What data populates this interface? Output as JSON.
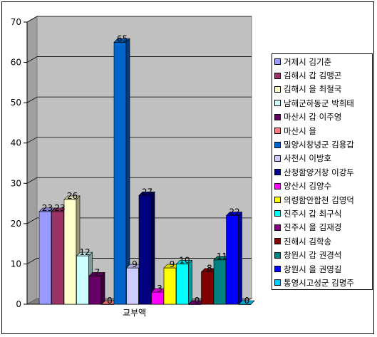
{
  "chart_data": {
    "type": "bar",
    "categories": [
      "교부액"
    ],
    "ylim": [
      0,
      70
    ],
    "yticks": [
      0,
      10,
      20,
      30,
      40,
      50,
      60,
      70
    ],
    "grid": true,
    "legend_position": "right",
    "series": [
      {
        "name": "거제시 김기춘",
        "value": 23,
        "color": "#9999ff"
      },
      {
        "name": "김해시 갑 김맹곤",
        "value": 23,
        "color": "#993366"
      },
      {
        "name": "김해시 을 최철국",
        "value": 26,
        "color": "#ffffcc"
      },
      {
        "name": "남해군하동군 박희태",
        "value": 12,
        "color": "#ccffff"
      },
      {
        "name": "마산시 갑 이주영",
        "value": 7,
        "color": "#660066"
      },
      {
        "name": "마산시 을",
        "value": 0,
        "color": "#ff8080"
      },
      {
        "name": "밀양시창녕군 김용갑",
        "value": 65,
        "color": "#0066cc"
      },
      {
        "name": "사천시 이방호",
        "value": 9,
        "color": "#ccccff"
      },
      {
        "name": "산청함양거창 이강두",
        "value": 27,
        "color": "#000080"
      },
      {
        "name": "양산시 김양수",
        "value": 3,
        "color": "#ff00ff"
      },
      {
        "name": "의령함안합천 김영덕",
        "value": 9,
        "color": "#ffff00"
      },
      {
        "name": "진주시 갑 최구식",
        "value": 10,
        "color": "#00ffff"
      },
      {
        "name": "진주시 을 김재경",
        "value": 0,
        "color": "#800080"
      },
      {
        "name": "진해시 김학송",
        "value": 8,
        "color": "#800000"
      },
      {
        "name": "창원시 갑 권경석",
        "value": 11,
        "color": "#008080"
      },
      {
        "name": "창원시 을 권영길",
        "value": 22,
        "color": "#0000ff"
      },
      {
        "name": "통영시고성군 김명주",
        "value": 0,
        "color": "#00ccff"
      }
    ]
  }
}
